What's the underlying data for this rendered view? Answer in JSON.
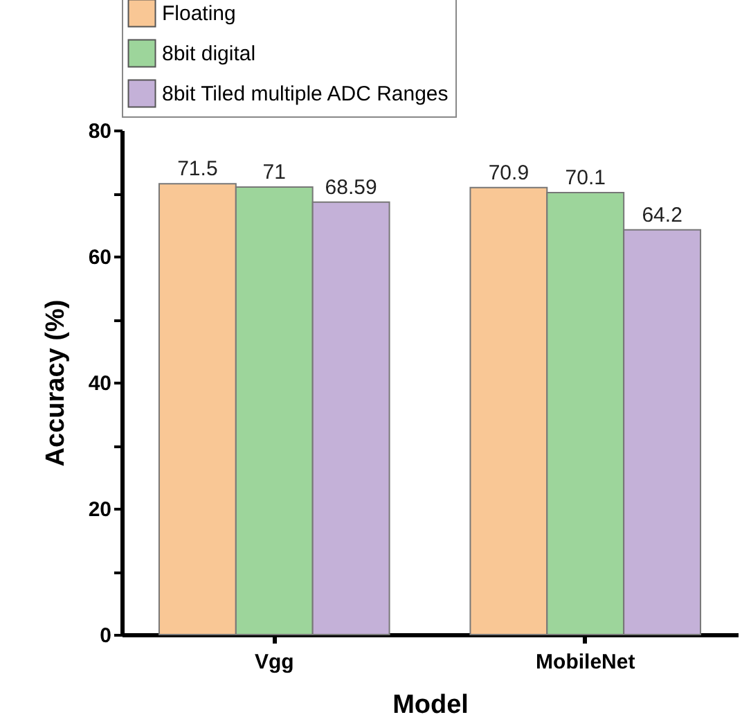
{
  "chart_data": {
    "type": "bar",
    "xlabel": "Model",
    "ylabel": "Accuracy (%)",
    "categories": [
      "Vgg",
      "MobileNet"
    ],
    "series": [
      {
        "name": "Floating",
        "color": "#f9c795",
        "values": [
          71.5,
          70.9
        ]
      },
      {
        "name": "8bit digital",
        "color": "#9dd59b",
        "values": [
          71,
          70.1
        ]
      },
      {
        "name": "8bit Tiled multiple ADC Ranges",
        "color": "#c4b1d8",
        "values": [
          68.59,
          64.2
        ]
      }
    ],
    "ylim": [
      0,
      80
    ],
    "yticks": [
      0,
      {
        "value": 10,
        "label": null
      },
      20,
      {
        "value": 30,
        "label": null
      },
      40,
      {
        "value": 50,
        "label": null
      },
      60,
      {
        "value": 70,
        "label": null
      },
      80
    ],
    "data_labels": true,
    "legend": "top",
    "grid": false
  }
}
